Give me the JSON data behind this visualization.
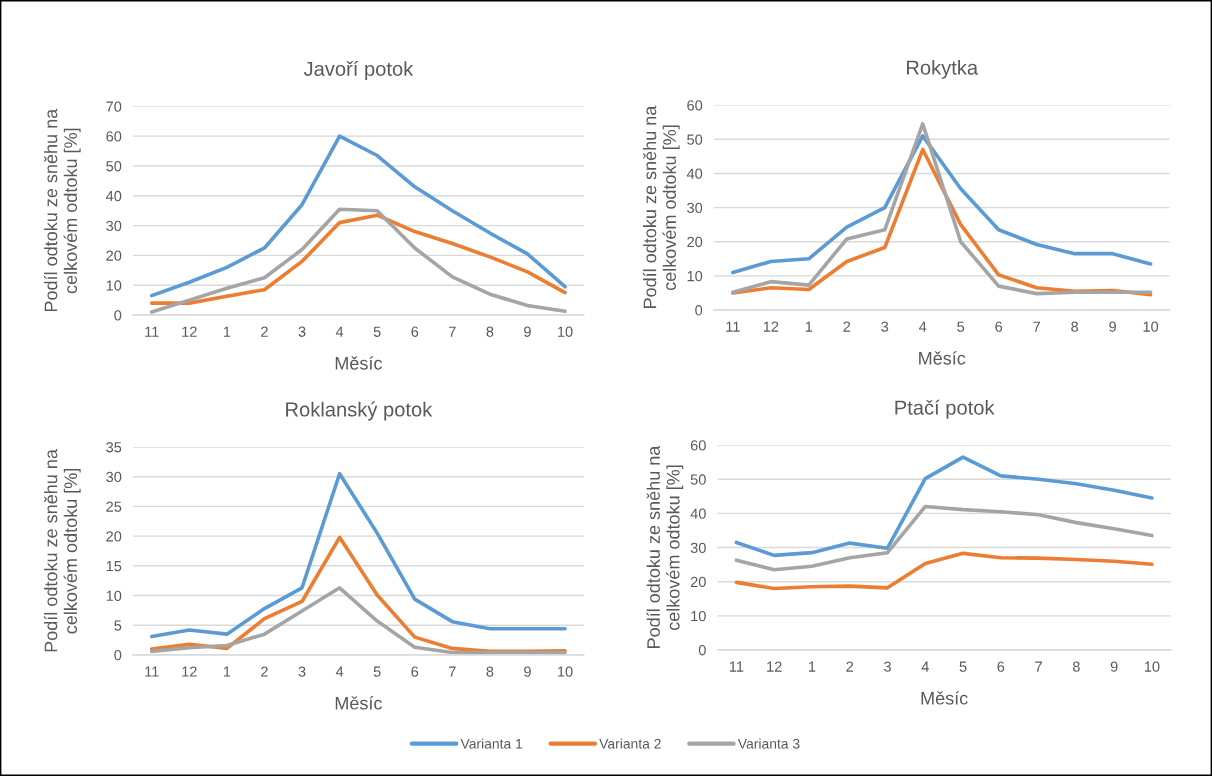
{
  "chart_data": [
    {
      "type": "line",
      "title": "Javoří potok",
      "xlabel": "Měsíc",
      "ylabel": "Podíl odtoku ze sněhu na\ncelkovém odtoku [%]",
      "categories": [
        "11",
        "12",
        "1",
        "2",
        "3",
        "4",
        "5",
        "6",
        "7",
        "8",
        "9",
        "10"
      ],
      "ylim": [
        0,
        70
      ],
      "yticks": [
        0,
        10,
        20,
        30,
        40,
        50,
        60,
        70
      ],
      "grid": "y",
      "legend": "bottom",
      "series": [
        {
          "name": "Varianta 1",
          "color": "#5b9bd5",
          "values": [
            6.5,
            11,
            16,
            22.5,
            37,
            60,
            53.5,
            43,
            35,
            27.5,
            20.5,
            9.5
          ]
        },
        {
          "name": "Varianta 2",
          "color": "#ed7d31",
          "values": [
            4,
            4,
            6.3,
            8.5,
            18,
            31,
            33.5,
            28,
            24,
            19.5,
            14.5,
            7.5
          ]
        },
        {
          "name": "Varianta 3",
          "color": "#a5a5a5",
          "values": [
            1,
            5,
            9,
            12.5,
            22,
            35.5,
            35,
            22.5,
            12.8,
            7,
            3.2,
            1.3
          ]
        }
      ]
    },
    {
      "type": "line",
      "title": "Rokytka",
      "xlabel": "Měsíc",
      "ylabel": "Podíl odtoku ze sněhu na\ncelkovém odtoku [%]",
      "categories": [
        "11",
        "12",
        "1",
        "2",
        "3",
        "4",
        "5",
        "6",
        "7",
        "8",
        "9",
        "10"
      ],
      "ylim": [
        0,
        60
      ],
      "yticks": [
        0,
        10,
        20,
        30,
        40,
        50,
        60
      ],
      "grid": "y",
      "legend": "bottom",
      "series": [
        {
          "name": "Varianta 1",
          "color": "#5b9bd5",
          "values": [
            11,
            14.2,
            15,
            24.3,
            30,
            51,
            35.5,
            23.5,
            19.2,
            16.5,
            16.5,
            13.5
          ]
        },
        {
          "name": "Varianta 2",
          "color": "#ed7d31",
          "values": [
            5,
            6.5,
            6,
            14.2,
            18.3,
            47,
            25,
            10.3,
            6.5,
            5.5,
            5.7,
            4.5
          ]
        },
        {
          "name": "Varianta 3",
          "color": "#a5a5a5",
          "values": [
            5.2,
            8.3,
            7.3,
            20.8,
            23.5,
            54.5,
            20,
            7,
            4.8,
            5.2,
            5.2,
            5.2
          ]
        }
      ]
    },
    {
      "type": "line",
      "title": "Roklanský potok",
      "xlabel": "Měsíc",
      "ylabel": "Podíl odtoku ze sněhu na\ncelkovém odtoku [%]",
      "categories": [
        "11",
        "12",
        "1",
        "2",
        "3",
        "4",
        "5",
        "6",
        "7",
        "8",
        "9",
        "10"
      ],
      "ylim": [
        0,
        35
      ],
      "yticks": [
        0,
        5,
        10,
        15,
        20,
        25,
        30,
        35
      ],
      "grid": "y",
      "legend": "bottom",
      "series": [
        {
          "name": "Varianta 1",
          "color": "#5b9bd5",
          "values": [
            3.1,
            4.2,
            3.5,
            7.8,
            11.3,
            30.5,
            20.5,
            9.4,
            5.6,
            4.4,
            4.4,
            4.4
          ]
        },
        {
          "name": "Varianta 2",
          "color": "#ed7d31",
          "values": [
            1,
            1.8,
            1.1,
            6.1,
            9,
            19.8,
            10.1,
            3,
            1.1,
            0.6,
            0.6,
            0.7
          ]
        },
        {
          "name": "Varianta 3",
          "color": "#a5a5a5",
          "values": [
            0.6,
            1.2,
            1.6,
            3.5,
            7.4,
            11.3,
            5.7,
            1.3,
            0.4,
            0.4,
            0.4,
            0.4
          ]
        }
      ]
    },
    {
      "type": "line",
      "title": "Ptačí potok",
      "xlabel": "Měsíc",
      "ylabel": "Podíl odtoku ze sněhu na\ncelkovém odtoku [%]",
      "categories": [
        "11",
        "12",
        "1",
        "2",
        "3",
        "4",
        "5",
        "6",
        "7",
        "8",
        "9",
        "10"
      ],
      "ylim": [
        0,
        60
      ],
      "yticks": [
        0,
        10,
        20,
        30,
        40,
        50,
        60
      ],
      "grid": "y",
      "legend": "bottom",
      "series": [
        {
          "name": "Varianta 1",
          "color": "#5b9bd5",
          "values": [
            31.5,
            27.7,
            28.5,
            31.3,
            29.8,
            50.2,
            56.5,
            51,
            50,
            48.7,
            46.8,
            44.5
          ]
        },
        {
          "name": "Varianta 2",
          "color": "#ed7d31",
          "values": [
            19.8,
            18,
            18.5,
            18.7,
            18.2,
            25.3,
            28.3,
            27,
            26.9,
            26.5,
            26,
            25.1
          ]
        },
        {
          "name": "Varianta 3",
          "color": "#a5a5a5",
          "values": [
            26.3,
            23.5,
            24.5,
            27,
            28.5,
            42,
            41.1,
            40.5,
            39.6,
            37.3,
            35.5,
            33.5
          ]
        }
      ]
    }
  ]
}
